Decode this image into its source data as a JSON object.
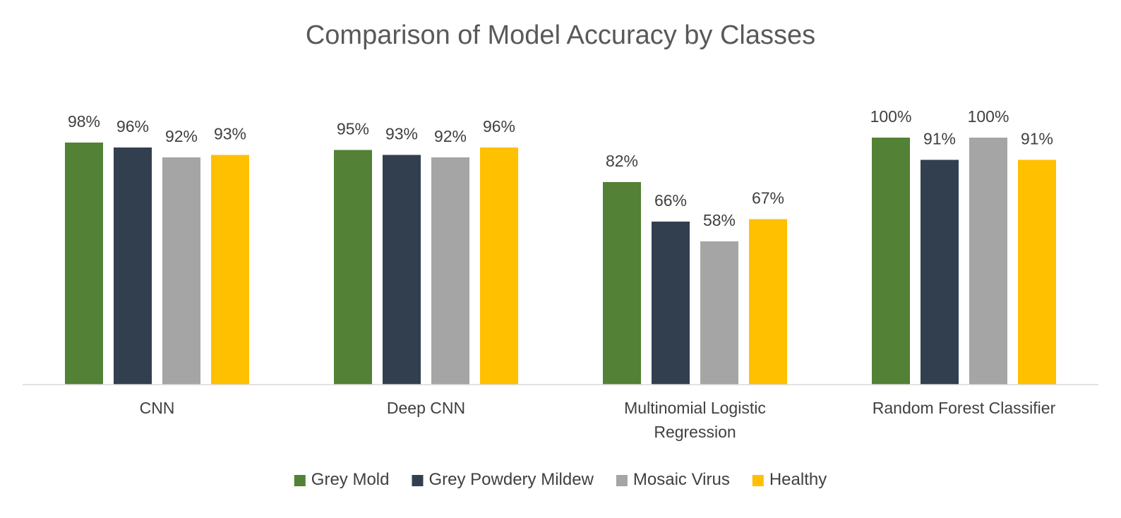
{
  "chart_data": {
    "type": "bar",
    "title": "Comparison of Model Accuracy by Classes",
    "categories": [
      [
        "CNN"
      ],
      [
        "Deep CNN"
      ],
      [
        "Multinomial Logistic",
        "Regression"
      ],
      [
        "Random Forest Classifier"
      ]
    ],
    "series": [
      {
        "name": "Grey Mold",
        "color": "#538135",
        "values": [
          98,
          95,
          82,
          100
        ],
        "labels": [
          "98%",
          "95%",
          "82%",
          "100%"
        ]
      },
      {
        "name": "Grey Powdery Mildew",
        "color": "#323f4f",
        "values": [
          96,
          93,
          66,
          91
        ],
        "labels": [
          "96%",
          "93%",
          "66%",
          "91%"
        ]
      },
      {
        "name": "Mosaic Virus",
        "color": "#a5a5a5",
        "values": [
          92,
          92,
          58,
          100
        ],
        "labels": [
          "92%",
          "92%",
          "58%",
          "100%"
        ]
      },
      {
        "name": "Healthy",
        "color": "#ffc000",
        "values": [
          93,
          96,
          67,
          91
        ],
        "labels": [
          "93%",
          "96%",
          "67%",
          "91%"
        ]
      }
    ],
    "ylim": [
      0,
      100
    ],
    "grid": false,
    "legend": "bottom",
    "axis_color": "#d9d9d9"
  }
}
